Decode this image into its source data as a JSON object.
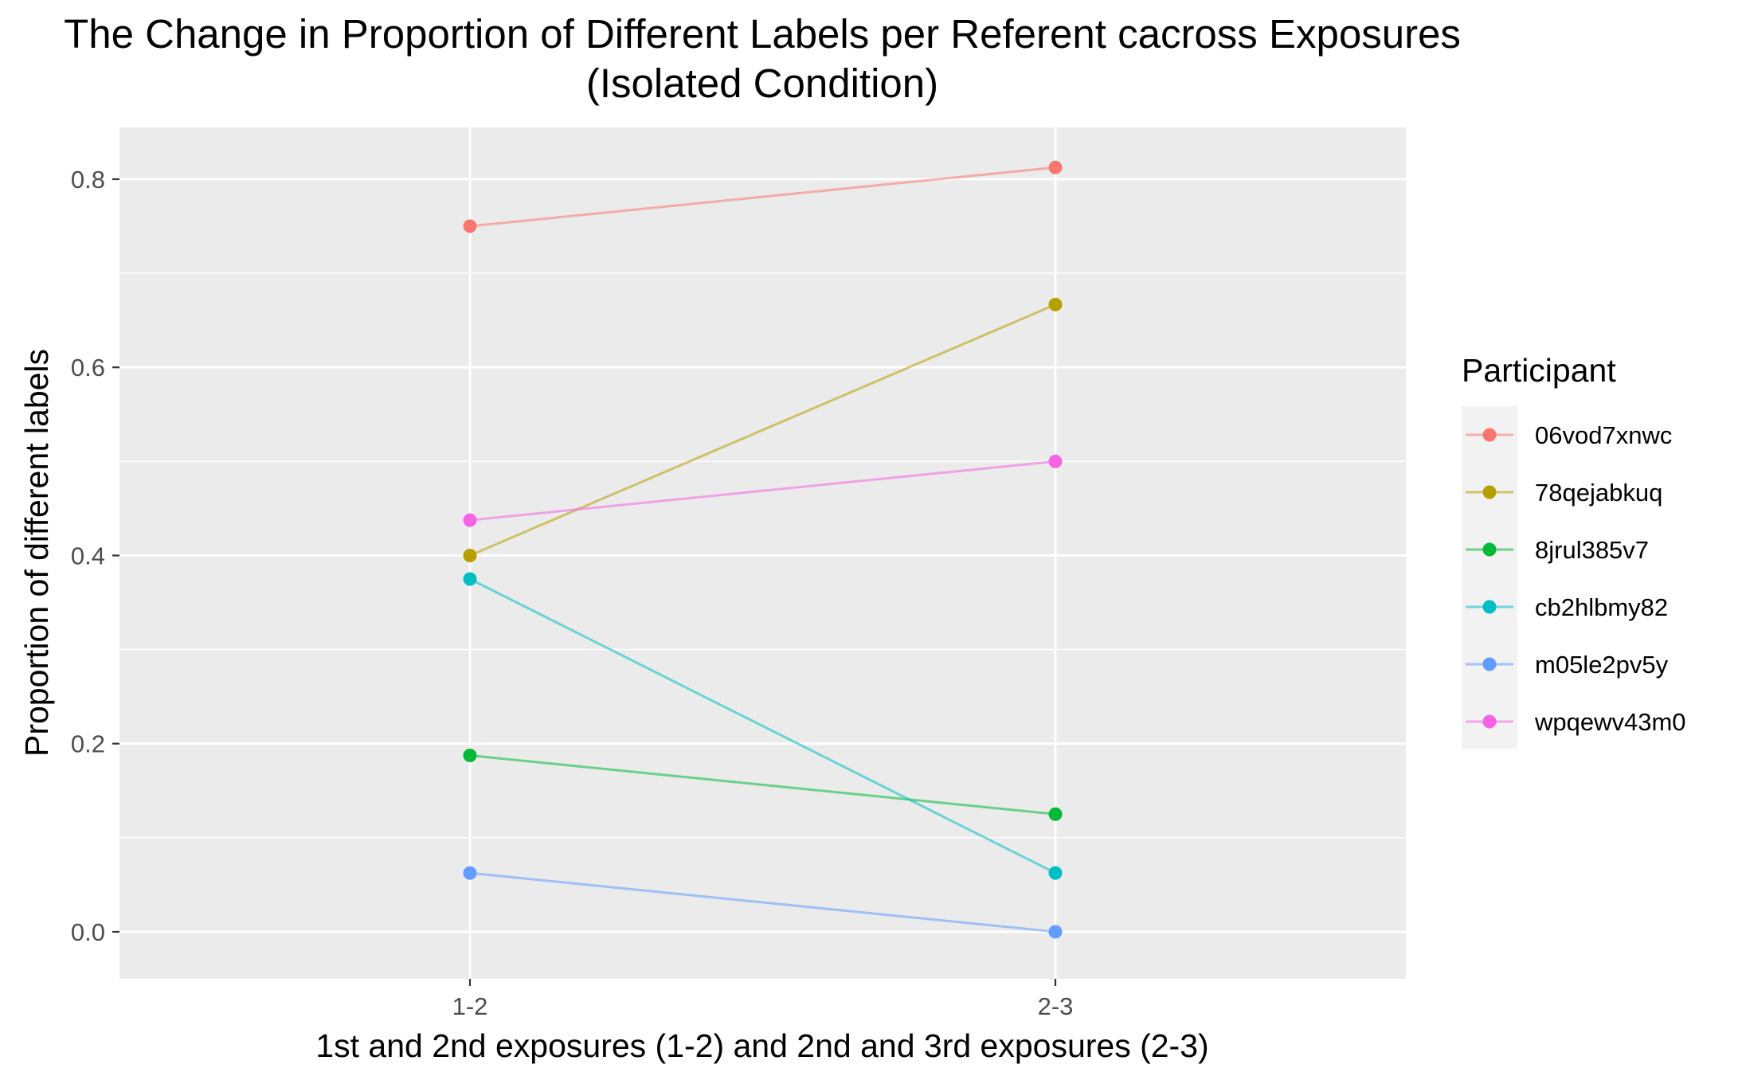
{
  "chart_data": {
    "type": "line",
    "title": "The Change in Proportion of Different Labels per Referent cacross Exposures",
    "subtitle": "(Isolated Condition)",
    "xlabel": "1st and 2nd exposures (1-2) and 2nd and 3rd exposures (2-3)",
    "ylabel": "Proportion of different labels",
    "categories": [
      "1-2",
      "2-3"
    ],
    "ylim": [
      -0.05,
      0.855
    ],
    "yticks": [
      0.0,
      0.2,
      0.4,
      0.6,
      0.8
    ],
    "ytick_labels": [
      "0.0",
      "0.2",
      "0.4",
      "0.6",
      "0.8"
    ],
    "grid": true,
    "legend": {
      "title": "Participant",
      "position": "right"
    },
    "series": [
      {
        "name": "06vod7xnwc",
        "color": "#F8766D",
        "values": [
          0.75,
          0.8125
        ]
      },
      {
        "name": "78qejabkuq",
        "color": "#B79F00",
        "values": [
          0.4,
          0.6667
        ]
      },
      {
        "name": "8jrul385v7",
        "color": "#00BA38",
        "values": [
          0.1875,
          0.125
        ]
      },
      {
        "name": "cb2hlbmy82",
        "color": "#00BFC4",
        "values": [
          0.375,
          0.0625
        ]
      },
      {
        "name": "m05le2pv5y",
        "color": "#619CFF",
        "values": [
          0.0625,
          0.0
        ]
      },
      {
        "name": "wpqewv43m0",
        "color": "#F564E3",
        "values": [
          0.4375,
          0.5
        ]
      }
    ]
  }
}
